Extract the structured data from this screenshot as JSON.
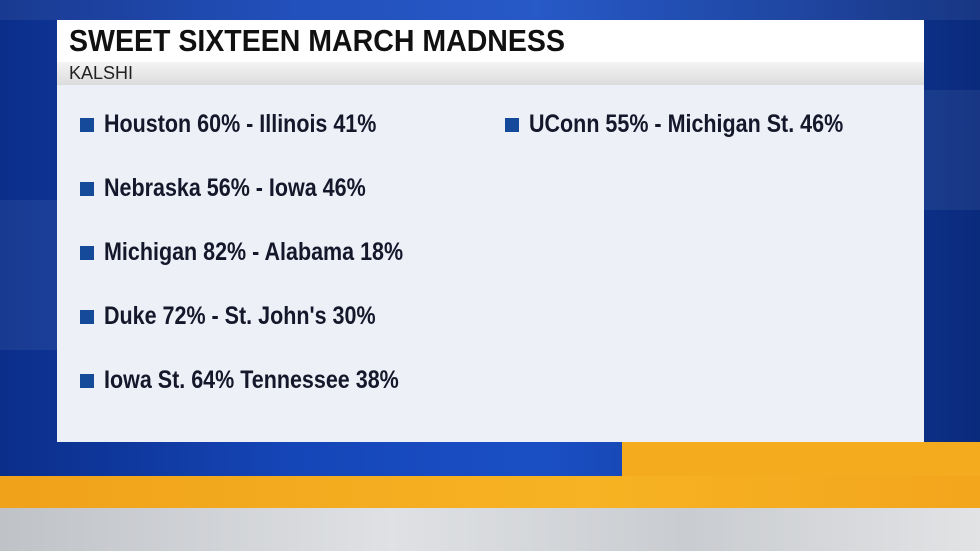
{
  "header": {
    "title": "SWEET SIXTEEN MARCH MADNESS",
    "subtitle": "KALSHI"
  },
  "columns": [
    [
      "Houston 60% - Illinois 41%",
      "Nebraska 56% - Iowa 46%",
      "Michigan 82% - Alabama 18%",
      "Duke 72% - St. John's 30%",
      "Iowa St. 64% Tennessee 38%"
    ],
    [
      "UConn 55% - Michigan St. 46%"
    ]
  ]
}
